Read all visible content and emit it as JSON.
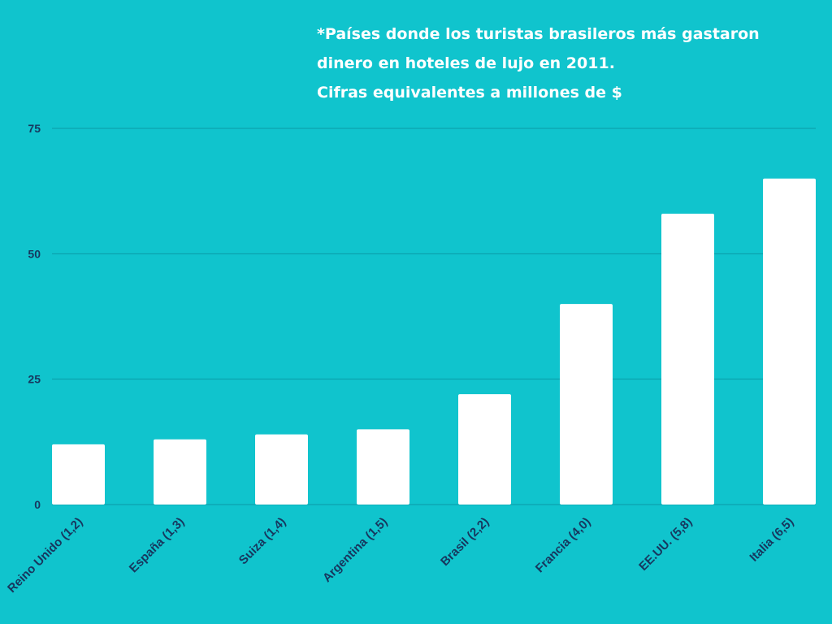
{
  "title_lines": [
    "*Países donde los turistas brasileros más gastaron",
    "dinero en hoteles de lujo en 2011.",
    "Cifras equivalentes a millones de $"
  ],
  "chart_data": {
    "type": "bar",
    "title": "*Países donde los turistas brasileros más gastaron dinero en hoteles de lujo en 2011. Cifras equivalentes a millones de $",
    "categories": [
      "Reino Unido (1,2)",
      "España (1,3)",
      "Suiza (1,4)",
      "Argentina (1,5)",
      "Brasil (2,2)",
      "Francia (4,0)",
      "EE.UU. (5,8)",
      "Italia (6,5)"
    ],
    "values": [
      12,
      13,
      14,
      15,
      22,
      40,
      58,
      65
    ],
    "ylim": [
      0,
      75
    ],
    "yticks": [
      0,
      25,
      50,
      75
    ],
    "xlabel": "",
    "ylabel": "",
    "grid": true,
    "colors": {
      "background": "#10c4cd",
      "bar": "#ffffff",
      "grid": "#0a9aa6",
      "label": "#17375e"
    }
  }
}
